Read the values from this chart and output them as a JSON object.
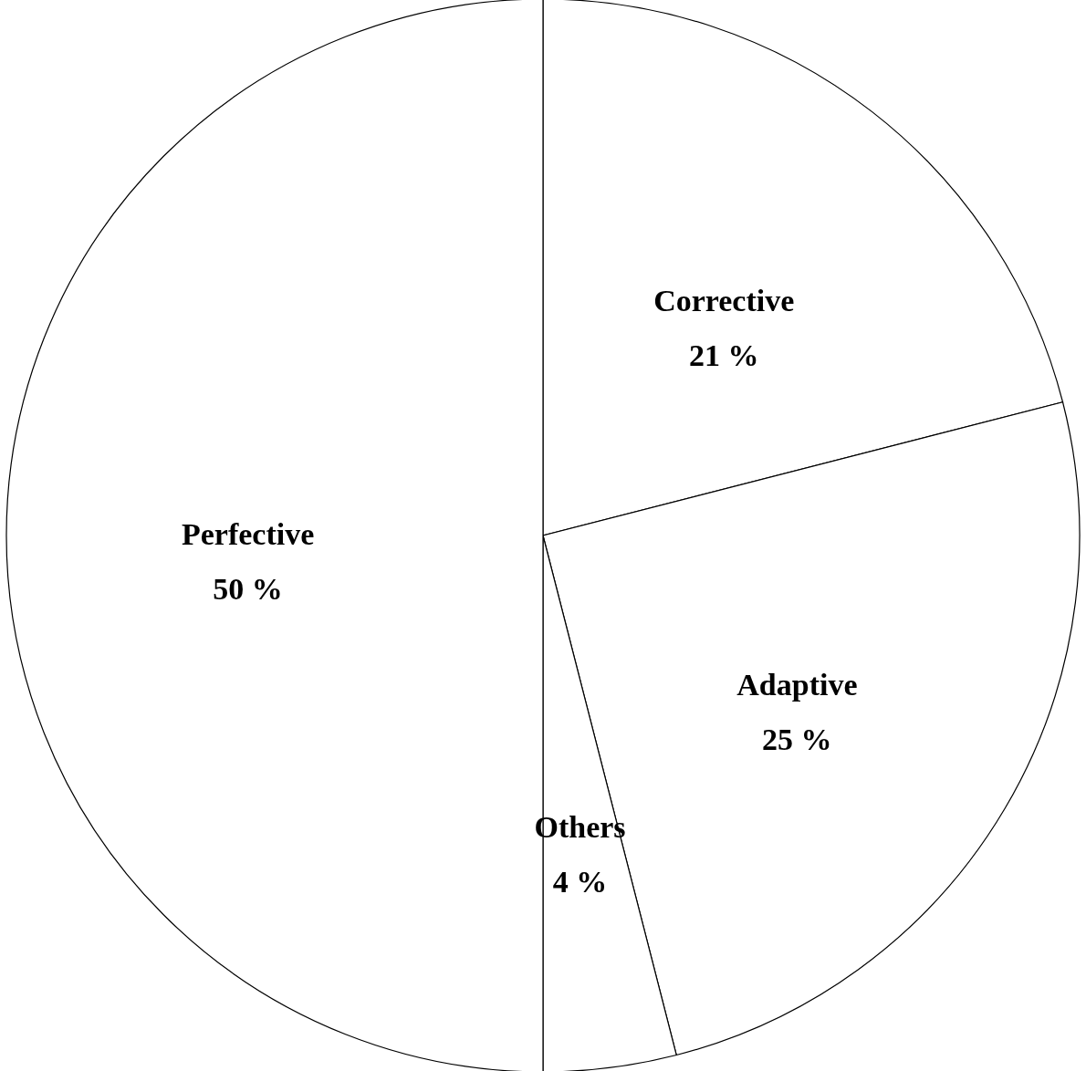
{
  "chart_data": {
    "type": "pie",
    "categories": [
      "Corrective",
      "Adaptive",
      "Others",
      "Perfective"
    ],
    "values": [
      21,
      25,
      4,
      50
    ],
    "value_labels": [
      "21 %",
      "25 %",
      "4 %",
      "50 %"
    ],
    "colors": [
      "#ffffff",
      "#ffffff",
      "#ffffff",
      "#ffffff"
    ]
  }
}
